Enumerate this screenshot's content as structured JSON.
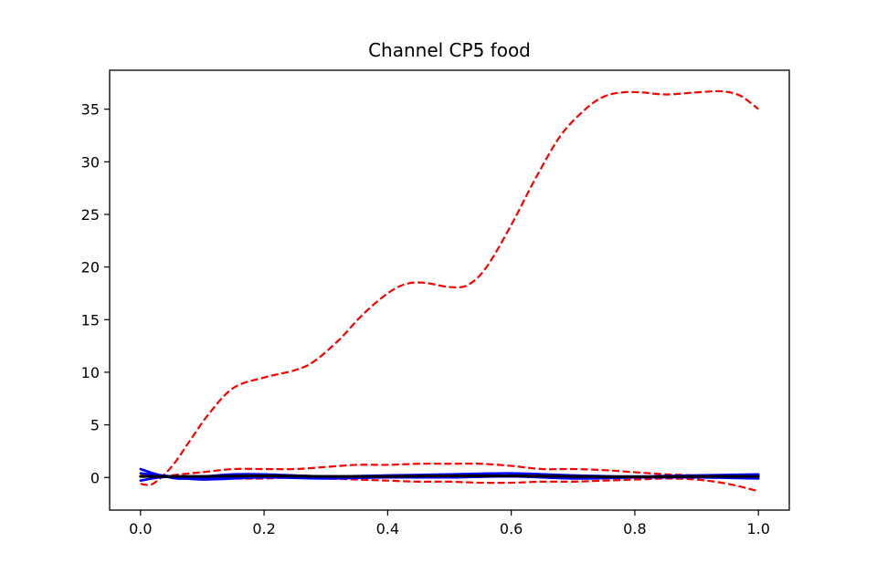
{
  "chart_data": {
    "type": "line",
    "title": "Channel CP5 food",
    "xlabel": "",
    "ylabel": "",
    "xlim": [
      -0.05,
      1.05
    ],
    "ylim": [
      -3.1,
      38.7
    ],
    "grid": false,
    "xticks": [
      0.0,
      0.2,
      0.4,
      0.6,
      0.8,
      1.0
    ],
    "xtick_labels": [
      "0.0",
      "0.2",
      "0.4",
      "0.6",
      "0.8",
      "1.0"
    ],
    "yticks": [
      0,
      5,
      10,
      15,
      20,
      25,
      30,
      35
    ],
    "ytick_labels": [
      "0",
      "5",
      "10",
      "15",
      "20",
      "25",
      "30",
      "35"
    ],
    "series": [
      {
        "color": "#ff0000",
        "style": "dashed",
        "width": 2.2,
        "x": [
          0.0,
          0.02,
          0.05,
          0.08,
          0.11,
          0.15,
          0.2,
          0.25,
          0.28,
          0.32,
          0.36,
          0.4,
          0.43,
          0.46,
          0.5,
          0.53,
          0.56,
          0.6,
          0.64,
          0.68,
          0.72,
          0.75,
          0.78,
          0.81,
          0.85,
          0.9,
          0.94,
          0.97,
          1.0
        ],
        "values": [
          -0.6,
          -0.6,
          1.0,
          3.5,
          6.0,
          8.5,
          9.5,
          10.2,
          11.0,
          13.0,
          15.5,
          17.5,
          18.4,
          18.5,
          18.1,
          18.3,
          20.0,
          24.0,
          28.5,
          32.5,
          35.0,
          36.2,
          36.6,
          36.6,
          36.4,
          36.6,
          36.7,
          36.3,
          35.0
        ]
      },
      {
        "color": "#ff0000",
        "style": "dashed",
        "width": 2.2,
        "x": [
          0.0,
          0.05,
          0.1,
          0.15,
          0.2,
          0.25,
          0.3,
          0.35,
          0.4,
          0.45,
          0.5,
          0.55,
          0.6,
          0.65,
          0.7,
          0.75,
          0.8,
          0.85,
          0.9,
          0.95,
          1.0
        ],
        "values": [
          -0.3,
          0.2,
          0.5,
          0.8,
          0.8,
          0.8,
          1.0,
          1.2,
          1.2,
          1.3,
          1.3,
          1.3,
          1.1,
          0.8,
          0.8,
          0.7,
          0.5,
          0.3,
          0.2,
          0.1,
          0.1
        ]
      },
      {
        "color": "#ff0000",
        "style": "dashed",
        "width": 2.2,
        "x": [
          0.0,
          0.05,
          0.1,
          0.15,
          0.2,
          0.25,
          0.3,
          0.35,
          0.4,
          0.45,
          0.5,
          0.55,
          0.6,
          0.65,
          0.7,
          0.75,
          0.8,
          0.85,
          0.9,
          0.95,
          1.0
        ],
        "values": [
          0.3,
          0.1,
          0.0,
          -0.1,
          -0.1,
          0.0,
          -0.1,
          -0.2,
          -0.3,
          -0.4,
          -0.4,
          -0.5,
          -0.5,
          -0.4,
          -0.4,
          -0.3,
          -0.2,
          -0.1,
          -0.2,
          -0.6,
          -1.3
        ]
      },
      {
        "color": "#0000ff",
        "style": "solid",
        "width": 2.6,
        "x": [
          0.0,
          0.02,
          0.04,
          0.06,
          0.1,
          0.15,
          0.2,
          0.3,
          0.4,
          0.5,
          0.6,
          0.7,
          0.8,
          0.9,
          1.0
        ],
        "values": [
          0.8,
          0.4,
          0.1,
          -0.1,
          -0.1,
          0.0,
          0.1,
          0.1,
          0.0,
          0.1,
          0.1,
          0.1,
          0.0,
          0.0,
          -0.1
        ]
      },
      {
        "color": "#0000ff",
        "style": "solid",
        "width": 2.6,
        "x": [
          0.0,
          0.03,
          0.06,
          0.1,
          0.15,
          0.2,
          0.3,
          0.4,
          0.5,
          0.6,
          0.7,
          0.8,
          0.9,
          1.0
        ],
        "values": [
          -0.3,
          0.0,
          0.1,
          0.1,
          0.3,
          0.3,
          0.1,
          0.2,
          0.3,
          0.4,
          0.2,
          0.1,
          0.2,
          0.3
        ]
      },
      {
        "color": "#0000ff",
        "style": "solid",
        "width": 2.6,
        "x": [
          0.0,
          0.05,
          0.1,
          0.2,
          0.3,
          0.4,
          0.5,
          0.6,
          0.7,
          0.8,
          0.9,
          1.0
        ],
        "values": [
          0.4,
          0.1,
          -0.2,
          0.0,
          -0.1,
          0.0,
          0.0,
          0.1,
          -0.1,
          0.0,
          0.1,
          0.2
        ]
      },
      {
        "color": "#000000",
        "style": "solid",
        "width": 3.0,
        "x": [
          0.0,
          0.05,
          0.1,
          0.2,
          0.3,
          0.4,
          0.5,
          0.6,
          0.7,
          0.8,
          0.9,
          1.0
        ],
        "values": [
          0.1,
          0.1,
          0.1,
          0.15,
          0.1,
          0.1,
          0.15,
          0.15,
          0.1,
          0.05,
          0.1,
          0.1
        ]
      }
    ]
  }
}
